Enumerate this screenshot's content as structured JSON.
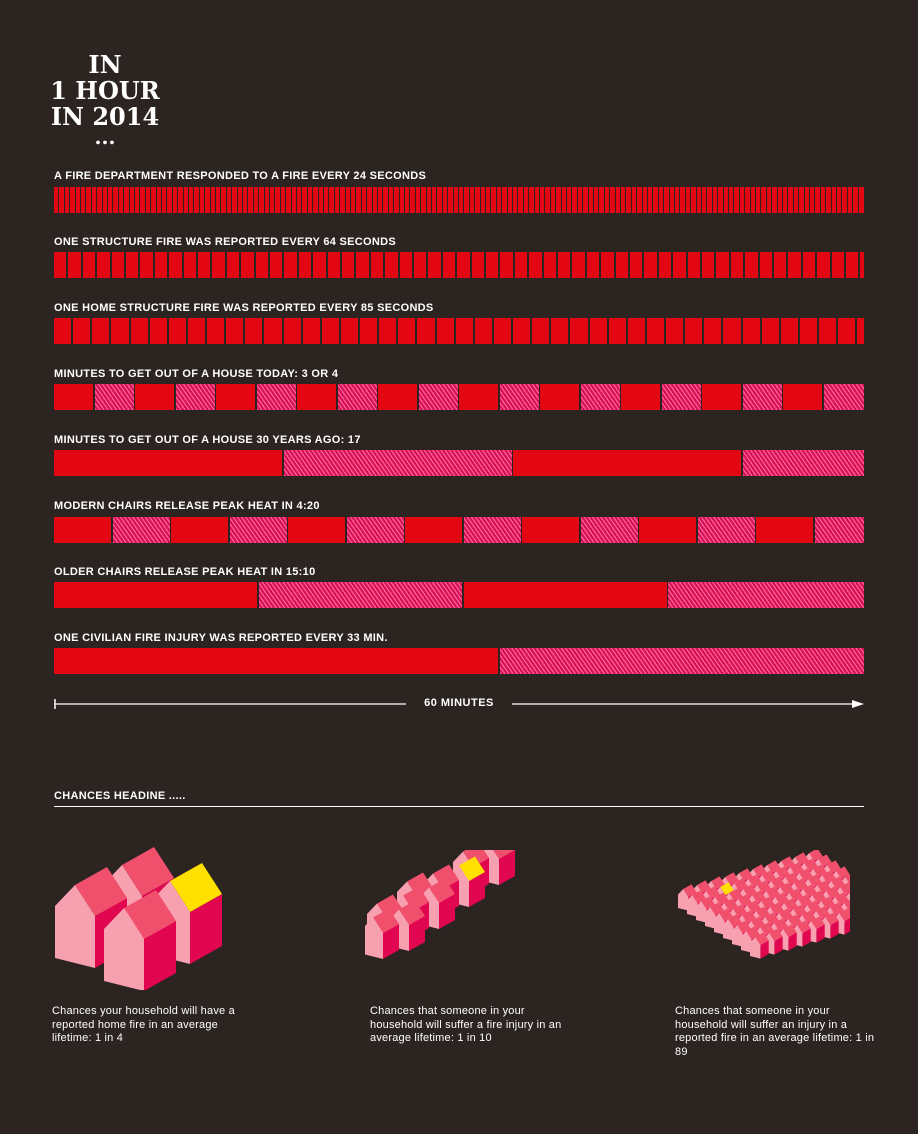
{
  "title": {
    "line1": "IN",
    "line2": "1 HOUR",
    "line3": "IN 2014",
    "dots": "..."
  },
  "colors": {
    "background": "#2b2421",
    "solid": "#e30613",
    "hatch": "#d81055",
    "highlight": "#ffe000"
  },
  "rows": [
    {
      "label": "A FIRE DEPARTMENT RESPONDED TO A FIRE EVERY 24 SECONDS",
      "interval_seconds": 24,
      "style": "dividers"
    },
    {
      "label": "ONE STRUCTURE FIRE WAS REPORTED EVERY 64 SECONDS",
      "interval_seconds": 64,
      "style": "dividers"
    },
    {
      "label": "ONE HOME STRUCTURE FIRE WAS REPORTED EVERY 85 SECONDS",
      "interval_seconds": 85,
      "style": "dividers"
    },
    {
      "label": "MINUTES TO GET OUT OF A HOUSE TODAY: 3 OR 4",
      "interval_seconds": 180,
      "style": "alternate"
    },
    {
      "label": "MINUTES TO GET OUT OF A HOUSE 30 YEARS AGO: 17",
      "interval_seconds": 1020,
      "style": "alternate"
    },
    {
      "label": "MODERN CHAIRS RELEASE PEAK HEAT IN 4:20",
      "interval_seconds": 260,
      "style": "alternate"
    },
    {
      "label": "OLDER CHAIRS RELEASE PEAK HEAT IN 15:10",
      "interval_seconds": 910,
      "style": "alternate"
    },
    {
      "label": "ONE CIVILIAN FIRE INJURY WAS REPORTED  EVERY 33 MIN.",
      "interval_seconds": 1980,
      "style": "alternate"
    }
  ],
  "total_seconds": 3600,
  "axis": {
    "label": "60 MINUTES"
  },
  "chances": {
    "heading": "CHANCES HEADINE .....",
    "items": [
      {
        "caption": "Chances your household will have a reported home fire in an average lifetime: 1 in 4",
        "total": 4,
        "highlighted": 1
      },
      {
        "caption": "Chances that someone in your household will suffer a fire injury in an average lifetime: 1 in 10",
        "total": 10,
        "highlighted": 1
      },
      {
        "caption": "Chances that someone in your household will suffer an injury in a reported fire in an average lifetime: 1 in 89",
        "total": 89,
        "highlighted": 1
      }
    ]
  }
}
